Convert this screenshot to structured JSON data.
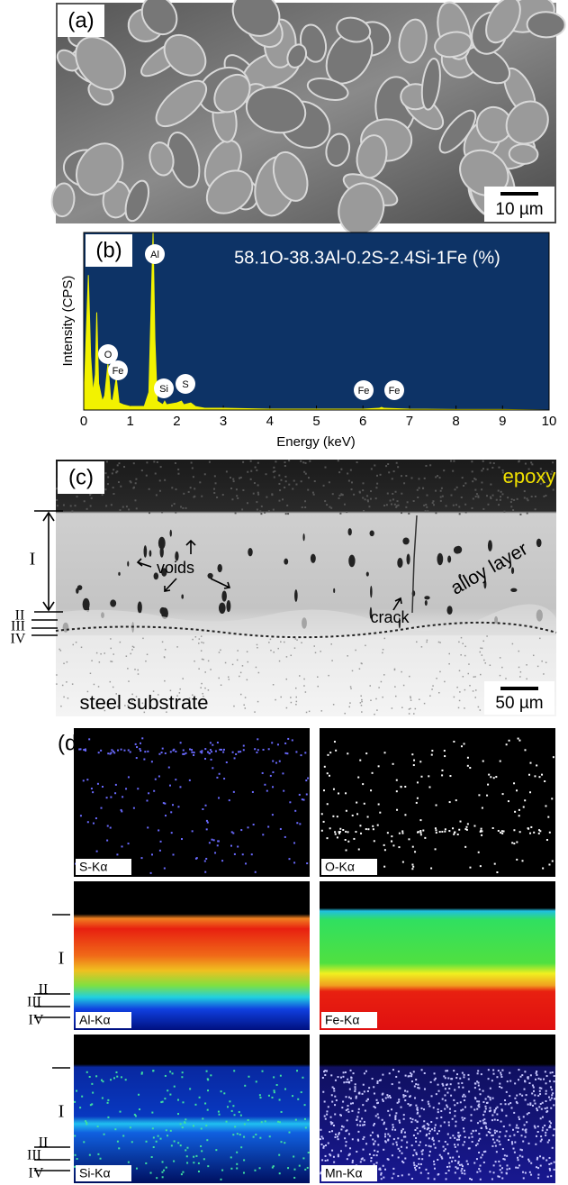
{
  "panel_a": {
    "label": "(a)",
    "scale_bar": "10 µm"
  },
  "chart_data": {
    "type": "area",
    "label": "(b)",
    "annotation": "58.1O-38.3Al-0.2S-2.4Si-1Fe (%)",
    "ylabel": "Intensity (CPS)",
    "xlabel": "Energy (keV)",
    "peak_labels": [
      "Al",
      "O",
      "Fe",
      "Si",
      "S",
      "Fe",
      "Fe"
    ],
    "x": [
      0,
      0.05,
      0.1,
      0.15,
      0.2,
      0.25,
      0.28,
      0.32,
      0.4,
      0.45,
      0.52,
      0.58,
      0.62,
      0.7,
      0.76,
      0.85,
      1.0,
      1.3,
      1.4,
      1.45,
      1.49,
      1.53,
      1.58,
      1.7,
      1.74,
      1.78,
      2.0,
      2.1,
      2.15,
      2.3,
      2.4,
      2.6,
      3.0,
      4.0,
      5.0,
      6.0,
      6.35,
      6.4,
      6.45,
      7.0,
      8.0,
      9.0,
      10
    ],
    "values": [
      0,
      40,
      76,
      30,
      10,
      20,
      55,
      15,
      5,
      8,
      26,
      6,
      5,
      18,
      4,
      3,
      2,
      2,
      10,
      60,
      100,
      40,
      5,
      3,
      5,
      3,
      4,
      5,
      3,
      4,
      2,
      1,
      1,
      0.5,
      0.5,
      0.5,
      1,
      1.5,
      1,
      0.5,
      0.3,
      0.3,
      0
    ],
    "color": "#f2f200",
    "background": "#0d3366",
    "xlim": [
      0,
      10
    ],
    "ylim": [
      0,
      100
    ],
    "xticks": [
      0,
      1,
      2,
      3,
      4,
      5,
      6,
      7,
      8,
      9,
      10
    ]
  },
  "panel_c": {
    "label": "(c)",
    "epoxy": "epoxy",
    "layers": [
      "I",
      "II",
      "III",
      "IV"
    ],
    "voids": "voids",
    "alloy_layer": "alloy layer",
    "crack": "crack",
    "substrate": "steel substrate",
    "scale_bar": "50 µm"
  },
  "panel_d": {
    "label": "(d)",
    "maps": [
      "S-Kα",
      "O-Kα",
      "Al-Kα",
      "Fe-Kα",
      "Si-Kα",
      "Mn-Kα"
    ],
    "layers": [
      "I",
      "II",
      "III",
      "IV"
    ]
  }
}
